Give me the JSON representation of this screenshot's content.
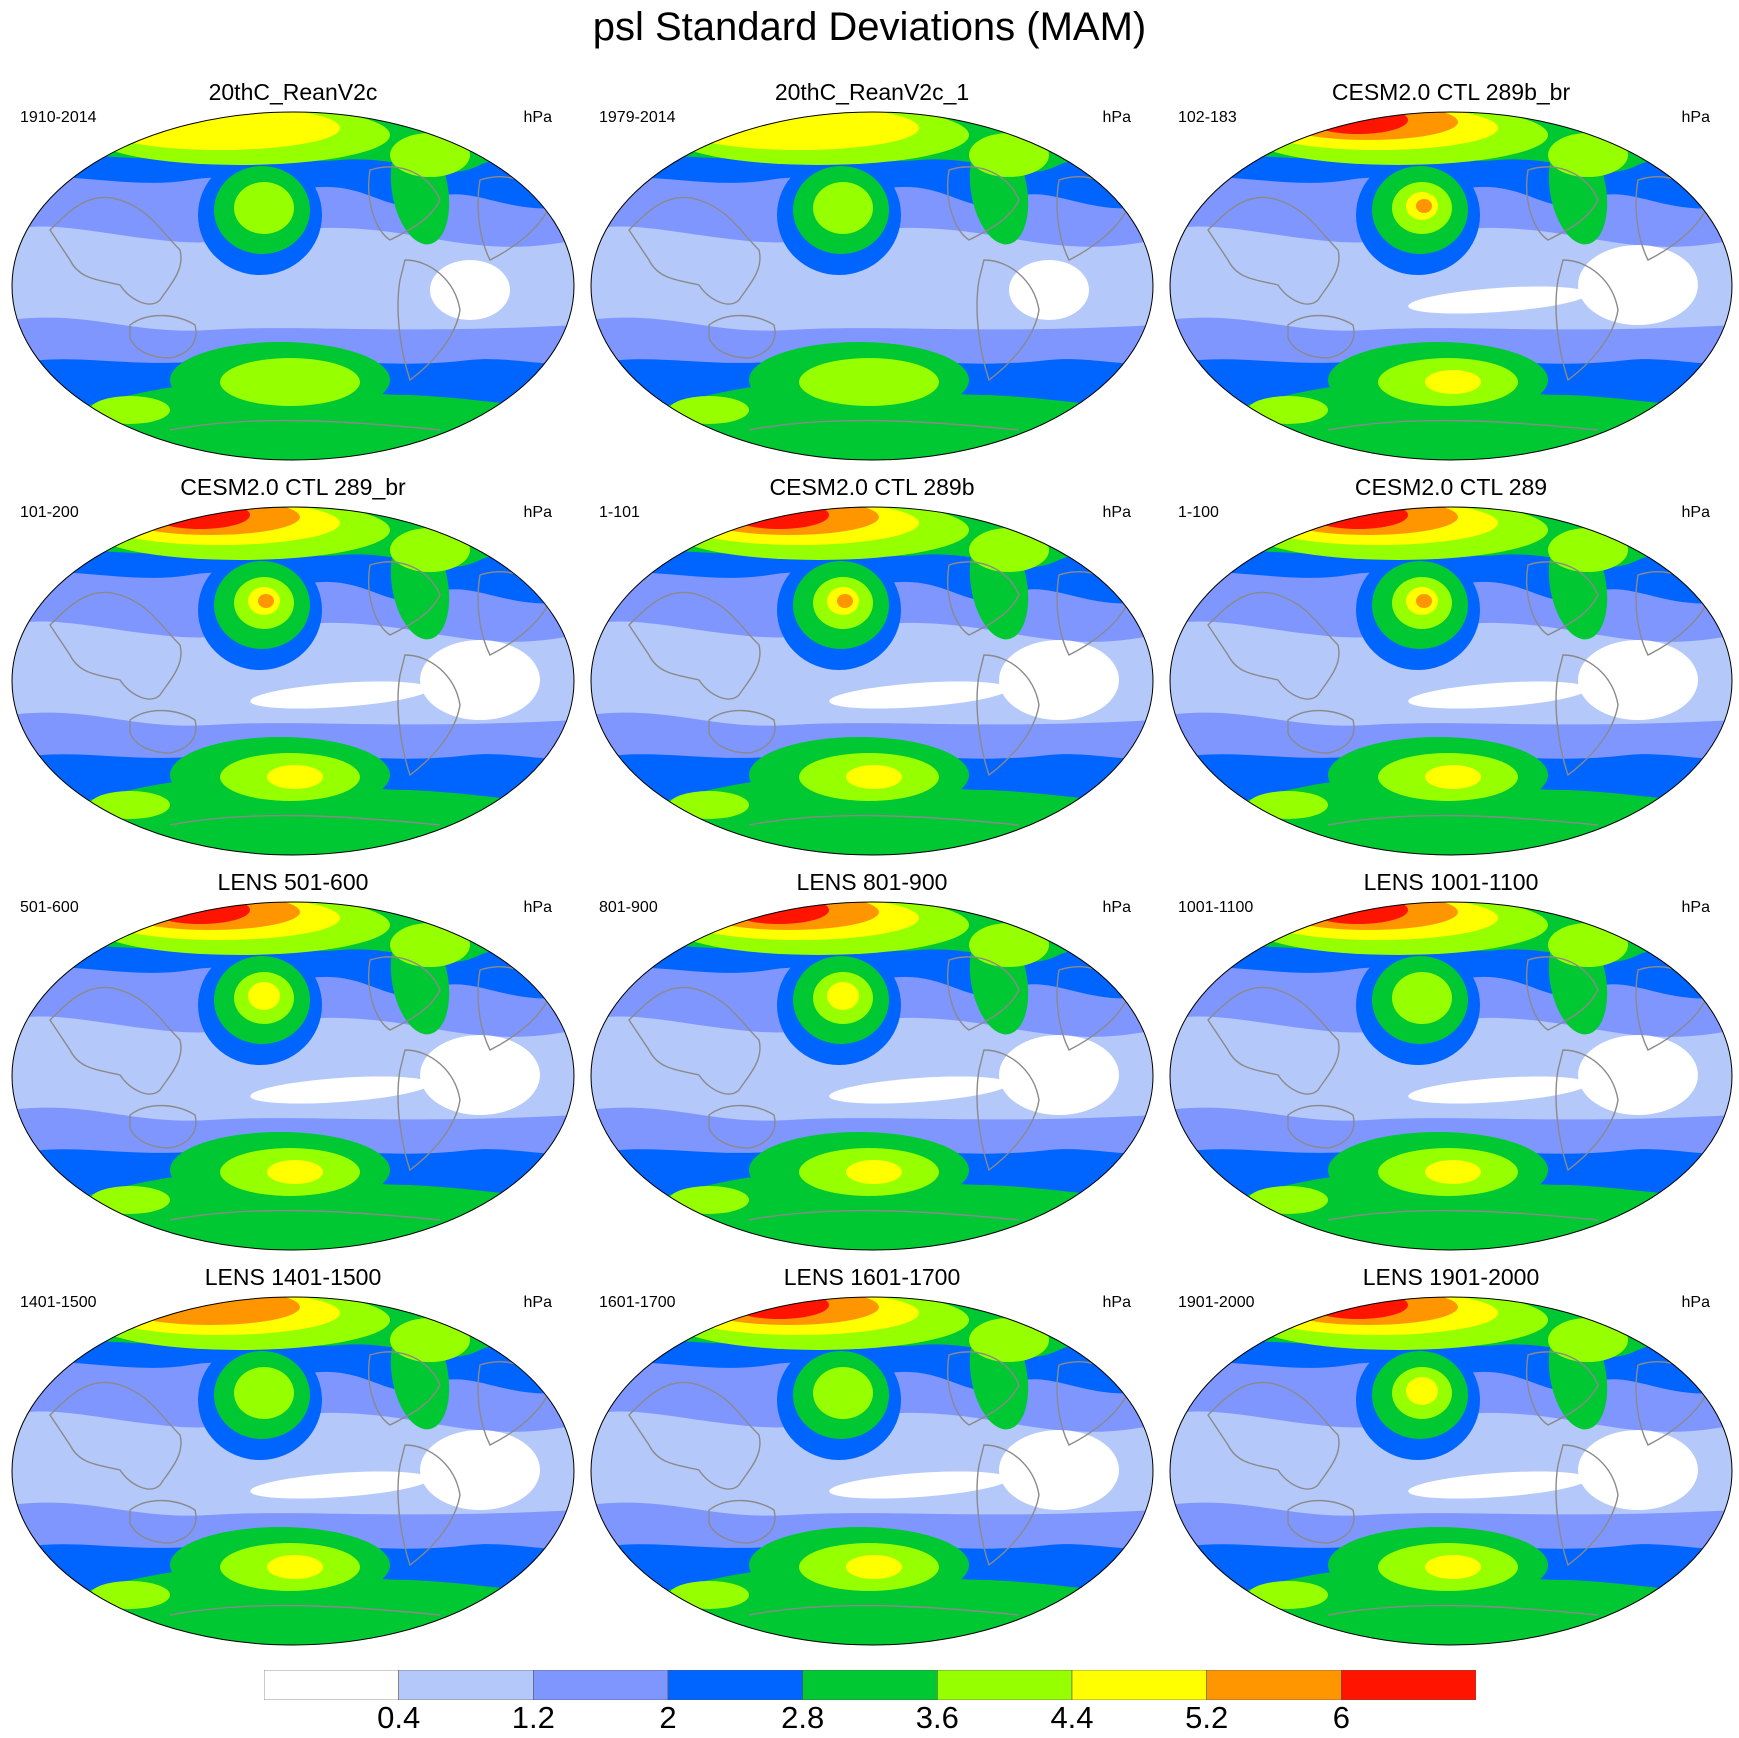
{
  "title": "psl Standard Deviations (MAM)",
  "panels": [
    {
      "title": "20thC_ReanV2c",
      "left_label": "1910-2014",
      "right_label": "hPa",
      "amp": 0.95,
      "extra": "low"
    },
    {
      "title": "20thC_ReanV2c_1",
      "left_label": "1979-2014",
      "right_label": "hPa",
      "amp": 1.0,
      "extra": "low"
    },
    {
      "title": "CESM2.0 CTL 289b_br",
      "left_label": "102-183",
      "right_label": "hPa",
      "amp": 1.25,
      "extra": "high"
    },
    {
      "title": "CESM2.0 CTL 289_br",
      "left_label": "101-200",
      "right_label": "hPa",
      "amp": 1.25,
      "extra": "high"
    },
    {
      "title": "CESM2.0 CTL 289b",
      "left_label": "1-101",
      "right_label": "hPa",
      "amp": 1.3,
      "extra": "high"
    },
    {
      "title": "CESM2.0 CTL 289",
      "left_label": "1-100",
      "right_label": "hPa",
      "amp": 1.25,
      "extra": "high"
    },
    {
      "title": "LENS 501-600",
      "left_label": "501-600",
      "right_label": "hPa",
      "amp": 1.15,
      "extra": "high"
    },
    {
      "title": "LENS 801-900",
      "left_label": "801-900",
      "right_label": "hPa",
      "amp": 1.15,
      "extra": "high"
    },
    {
      "title": "LENS 1001-1100",
      "left_label": "1001-1100",
      "right_label": "hPa",
      "amp": 1.1,
      "extra": "high"
    },
    {
      "title": "LENS 1401-1500",
      "left_label": "1401-1500",
      "right_label": "hPa",
      "amp": 1.1,
      "extra": "mid"
    },
    {
      "title": "LENS 1601-1700",
      "left_label": "1601-1700",
      "right_label": "hPa",
      "amp": 1.1,
      "extra": "high"
    },
    {
      "title": "LENS 1901-2000",
      "left_label": "1901-2000",
      "right_label": "hPa",
      "amp": 1.15,
      "extra": "high"
    }
  ],
  "colorbar": {
    "colors": [
      "#ffffff",
      "#b4c8fa",
      "#7f96ff",
      "#0064ff",
      "#00c832",
      "#96ff00",
      "#ffff00",
      "#ff9600",
      "#ff1400"
    ],
    "levels": [
      "0.4",
      "1.2",
      "2",
      "2.8",
      "3.6",
      "4.4",
      "5.2",
      "6"
    ]
  }
}
